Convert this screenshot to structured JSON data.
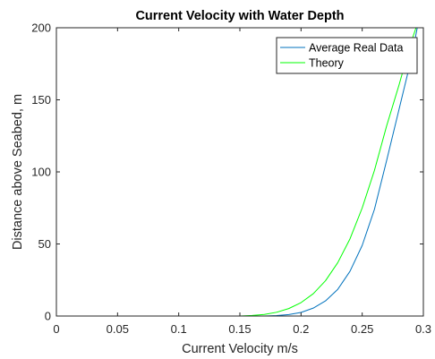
{
  "chart_data": {
    "type": "line",
    "title": "Current Velocity with Water Depth",
    "xlabel": "Current Velocity m/s",
    "ylabel": "Distance above Seabed, m",
    "xlim": [
      0,
      0.3
    ],
    "ylim": [
      0,
      200
    ],
    "xticks": [
      "0",
      "0.05",
      "0.1",
      "0.15",
      "0.2",
      "0.25",
      "0.3"
    ],
    "yticks": [
      "0",
      "50",
      "100",
      "150",
      "200"
    ],
    "grid": false,
    "legend_position": "top-right",
    "series": [
      {
        "name": "Average Real Data",
        "color": "#0072BD",
        "points": [
          [
            0,
            0
          ],
          [
            0.1,
            0
          ],
          [
            0.17,
            0
          ],
          [
            0.18,
            0.3
          ],
          [
            0.19,
            1
          ],
          [
            0.2,
            2.5
          ],
          [
            0.21,
            5.5
          ],
          [
            0.22,
            10.5
          ],
          [
            0.23,
            18.5
          ],
          [
            0.24,
            31
          ],
          [
            0.25,
            49
          ],
          [
            0.26,
            74
          ],
          [
            0.27,
            108
          ],
          [
            0.28,
            143
          ],
          [
            0.29,
            178
          ],
          [
            0.295,
            200
          ]
        ]
      },
      {
        "name": "Theory",
        "color": "#00FF00",
        "points": [
          [
            0,
            0
          ],
          [
            0.1,
            0
          ],
          [
            0.15,
            0
          ],
          [
            0.16,
            0.4
          ],
          [
            0.17,
            1.1
          ],
          [
            0.18,
            2.6
          ],
          [
            0.19,
            5.2
          ],
          [
            0.2,
            9.3
          ],
          [
            0.21,
            15.5
          ],
          [
            0.22,
            24.5
          ],
          [
            0.23,
            37
          ],
          [
            0.24,
            53.5
          ],
          [
            0.25,
            75
          ],
          [
            0.26,
            101
          ],
          [
            0.27,
            132
          ],
          [
            0.28,
            160
          ],
          [
            0.29,
            190
          ],
          [
            0.294,
            200
          ]
        ]
      }
    ]
  }
}
